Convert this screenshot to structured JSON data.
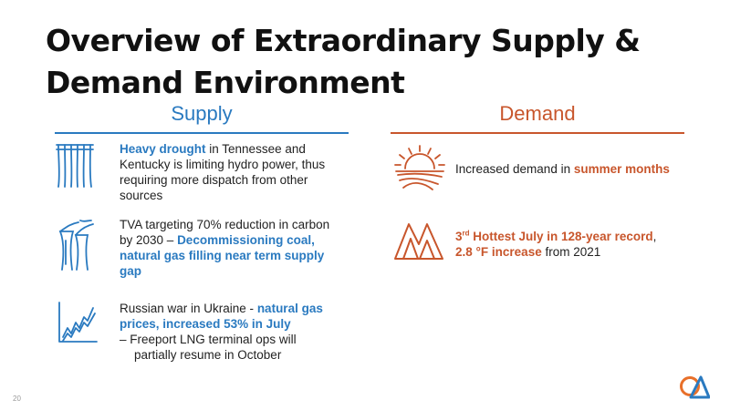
{
  "title": "Overview of Extraordinary Supply & Demand Environment",
  "supply": {
    "heading": "Supply",
    "items": [
      {
        "highlight": "Heavy drought",
        "text": " in Tennessee and Kentucky is limiting hydro power, thus requiring more dispatch from other sources",
        "icon": "dam-icon"
      },
      {
        "text": "TVA targeting 70% reduction in carbon by 2030 – ",
        "highlight": "Decommissioning coal, natural gas filling near term supply gap",
        "icon": "power-plant-icon"
      },
      {
        "text": "Russian war in Ukraine - ",
        "highlight": "natural gas prices, increased 53% in July",
        "sub": "–  Freeport LNG terminal ops will partially resume in October",
        "icon": "rising-chart-icon"
      }
    ]
  },
  "demand": {
    "heading": "Demand",
    "items": [
      {
        "text": "Increased demand in ",
        "highlight": "summer months",
        "icon": "sun-icon"
      },
      {
        "highlight_a": "3",
        "highlight_sup": "rd",
        "highlight_b": " Hottest July in 128-year record",
        "comma": ",",
        "highlight_c": "2.8 °F increase",
        "text": " from 2021",
        "icon": "mountain-icon"
      }
    ]
  },
  "page_number": "20",
  "colors": {
    "supply": "#2a7ac0",
    "demand": "#c8562c"
  },
  "logo": "company-logo"
}
